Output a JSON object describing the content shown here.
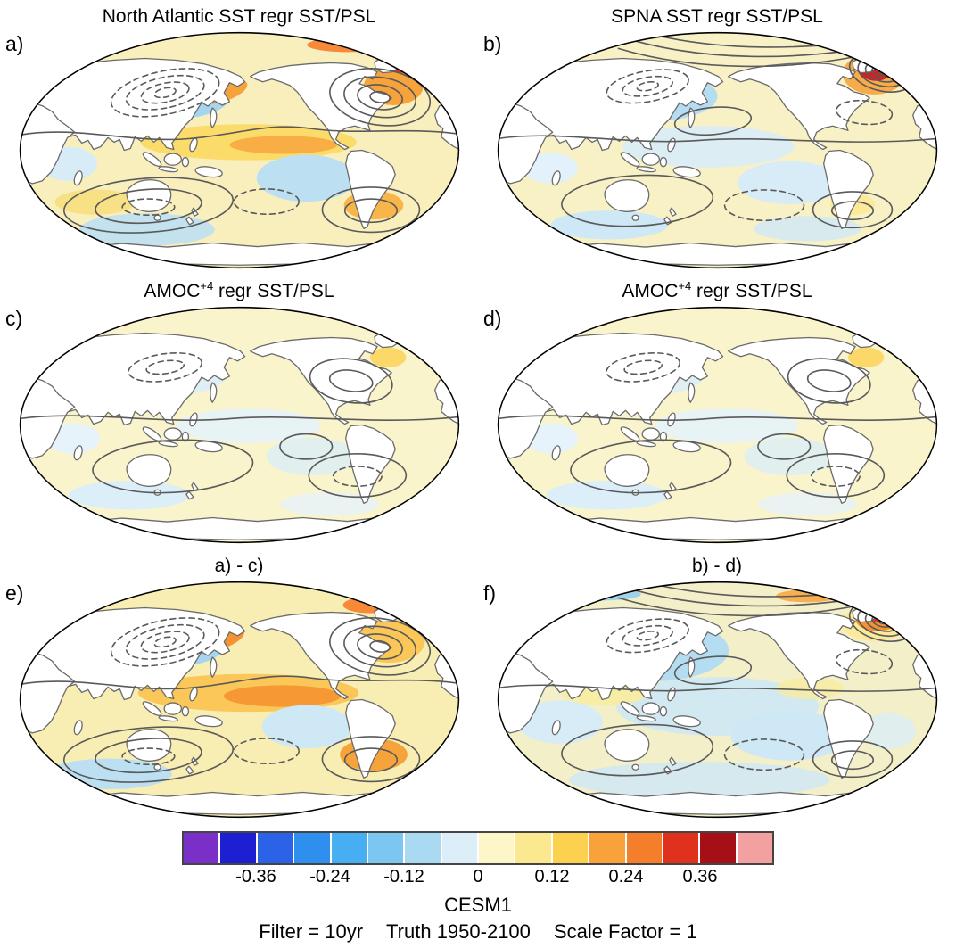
{
  "figure": {
    "panels": [
      {
        "id": "a",
        "label": "a)",
        "title_main": "North Atlantic SST regr SST/PSL",
        "title_sup": "",
        "title_rest": ""
      },
      {
        "id": "b",
        "label": "b)",
        "title_main": "SPNA SST regr SST/PSL",
        "title_sup": "",
        "title_rest": ""
      },
      {
        "id": "c",
        "label": "c)",
        "title_main": "AMOC",
        "title_sup": "+4",
        "title_rest": " regr SST/PSL"
      },
      {
        "id": "d",
        "label": "d)",
        "title_main": "AMOC",
        "title_sup": "+4",
        "title_rest": " regr SST/PSL"
      },
      {
        "id": "e",
        "label": "e)",
        "title_main": "a) - c)",
        "title_sup": "",
        "title_rest": ""
      },
      {
        "id": "f",
        "label": "f)",
        "title_main": "b) - d)",
        "title_sup": "",
        "title_rest": ""
      }
    ],
    "colorbar": {
      "ticks": [
        "-0.36",
        "-0.24",
        "-0.12",
        "0",
        "0.12",
        "0.24",
        "0.36"
      ],
      "tick_positions": [
        0.125,
        0.25,
        0.375,
        0.5,
        0.625,
        0.75,
        0.875
      ],
      "colors": [
        "#7A30C8",
        "#1E1ED2",
        "#2B62E8",
        "#2F8FEF",
        "#45AFF2",
        "#7CC7F0",
        "#AADAF2",
        "#DCEEF8",
        "#FDF6C8",
        "#FCE98F",
        "#FCD14F",
        "#F9A23B",
        "#F57E2A",
        "#E0301E",
        "#A50F15",
        "#F2A0A0"
      ]
    },
    "footer": {
      "model": "CESM1",
      "line": [
        "Filter = 10yr",
        "Truth 1950-2100",
        "Scale Factor = 1"
      ]
    }
  },
  "chart_data": {
    "type": "heatmap",
    "title": "SST regression maps (shading) with PSL regression contours, 2x3 panel global figure",
    "projection": "Robinson-like ellipse, Pacific-centered",
    "panels": [
      {
        "id": "a",
        "title": "North Atlantic SST regr SST/PSL",
        "pattern": "Warm tropical Pacific band, warm NW Pacific and North/South Atlantic (red max near Greenland), cool central North Pacific and SE Pacific; dashed (negative) PSL contours over North Pacific, solid PSL rings over North America/North Atlantic"
      },
      {
        "id": "b",
        "title": "SPNA SST regr SST/PSL",
        "pattern": "Strong warm maximum (red) in subpolar North Atlantic with tight concentric PSL contour rings and arcing contours across Arctic; weak cool anomalies across central/North Pacific"
      },
      {
        "id": "c",
        "title": "AMOC+4 regr SST/PSL",
        "pattern": "Mostly weak pale-yellow ocean, faint cool patches, red/orange warm spots along Arctic edge (top-left and top-right); sparse PSL contours"
      },
      {
        "id": "d",
        "title": "AMOC+4 regr SST/PSL",
        "pattern": "Nearly identical to panel c"
      },
      {
        "id": "e",
        "title": "a) - c)",
        "pattern": "Difference a minus c: ENSO-like warm tropical Pacific band, warm Atlantic, cool North Pacific with dashed PSL contours, warm South Atlantic"
      },
      {
        "id": "f",
        "title": "b) - d)",
        "pattern": "Difference b minus d: broad weak cooling over most of Pacific with cyan core in NE Pacific, warm orange/red spot in subpolar North Atlantic with contour rings"
      }
    ],
    "colorbar": {
      "ticks": [
        -0.36,
        -0.24,
        -0.12,
        0,
        0.12,
        0.24,
        0.36
      ],
      "range": [
        -0.48,
        0.48
      ],
      "interval": 0.06,
      "n_cells": 16,
      "orientation": "horizontal"
    },
    "caption": [
      "CESM1",
      "Filter = 10yr",
      "Truth 1950-2100",
      "Scale Factor = 1"
    ]
  }
}
